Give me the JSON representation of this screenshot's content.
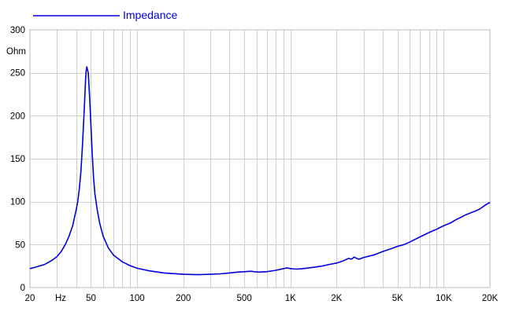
{
  "chart_data": {
    "type": "line",
    "x_scale": "log",
    "xlim": [
      20,
      20000
    ],
    "ylim": [
      0,
      300
    ],
    "grid": true,
    "legend_placement": "top-left",
    "colors": {
      "series": "#0000dd",
      "grid": "#d0d0d0",
      "frame": "#bbbbbb"
    },
    "ylabel": "Ohm",
    "x_unit_label": "Hz",
    "x_ticks": [
      {
        "value": 20,
        "label": "20"
      },
      {
        "value": 50,
        "label": "50"
      },
      {
        "value": 100,
        "label": "100"
      },
      {
        "value": 200,
        "label": "200"
      },
      {
        "value": 500,
        "label": "500"
      },
      {
        "value": 1000,
        "label": "1K"
      },
      {
        "value": 2000,
        "label": "2K"
      },
      {
        "value": 5000,
        "label": "5K"
      },
      {
        "value": 10000,
        "label": "10K"
      },
      {
        "value": 20000,
        "label": "20K"
      }
    ],
    "y_ticks": [
      {
        "value": 0,
        "label": "0"
      },
      {
        "value": 50,
        "label": "50"
      },
      {
        "value": 100,
        "label": "100"
      },
      {
        "value": 150,
        "label": "150"
      },
      {
        "value": 200,
        "label": "200"
      },
      {
        "value": 250,
        "label": "250"
      },
      {
        "value": 300,
        "label": "300"
      }
    ],
    "series": [
      {
        "name": "Impedance",
        "x": [
          20,
          22,
          25,
          28,
          30,
          32,
          34,
          36,
          38,
          40,
          41,
          42,
          43,
          44,
          45,
          45.5,
          46,
          46.5,
          47,
          48,
          49,
          50,
          51,
          52,
          53,
          55,
          57,
          60,
          65,
          70,
          80,
          90,
          100,
          120,
          150,
          200,
          250,
          300,
          350,
          400,
          450,
          500,
          550,
          580,
          620,
          700,
          800,
          900,
          950,
          1000,
          1100,
          1200,
          1400,
          1600,
          1800,
          2000,
          2200,
          2400,
          2500,
          2600,
          2700,
          2800,
          3000,
          3500,
          4000,
          4500,
          5000,
          5500,
          6000,
          7000,
          8000,
          9000,
          10000,
          11000,
          12000,
          13000,
          14000,
          15000,
          16000,
          17000,
          18000,
          19000,
          20000
        ],
        "values": [
          22,
          24,
          27,
          32,
          36,
          42,
          50,
          60,
          72,
          90,
          100,
          115,
          135,
          165,
          200,
          218,
          238,
          252,
          257,
          250,
          222,
          188,
          155,
          128,
          110,
          90,
          75,
          60,
          46,
          38,
          30,
          25.5,
          22.5,
          19.5,
          17,
          15.5,
          15,
          15.5,
          16,
          17,
          18,
          18.5,
          19,
          18.5,
          18,
          18.5,
          20,
          22,
          23,
          22,
          21.5,
          22,
          23.5,
          25,
          27,
          28.5,
          31,
          34,
          33,
          35.5,
          34,
          33,
          35,
          38,
          42,
          45,
          48,
          50,
          53,
          59,
          64,
          68,
          72,
          75,
          79,
          82,
          85,
          87,
          89,
          91,
          94,
          97,
          99
        ]
      }
    ]
  }
}
